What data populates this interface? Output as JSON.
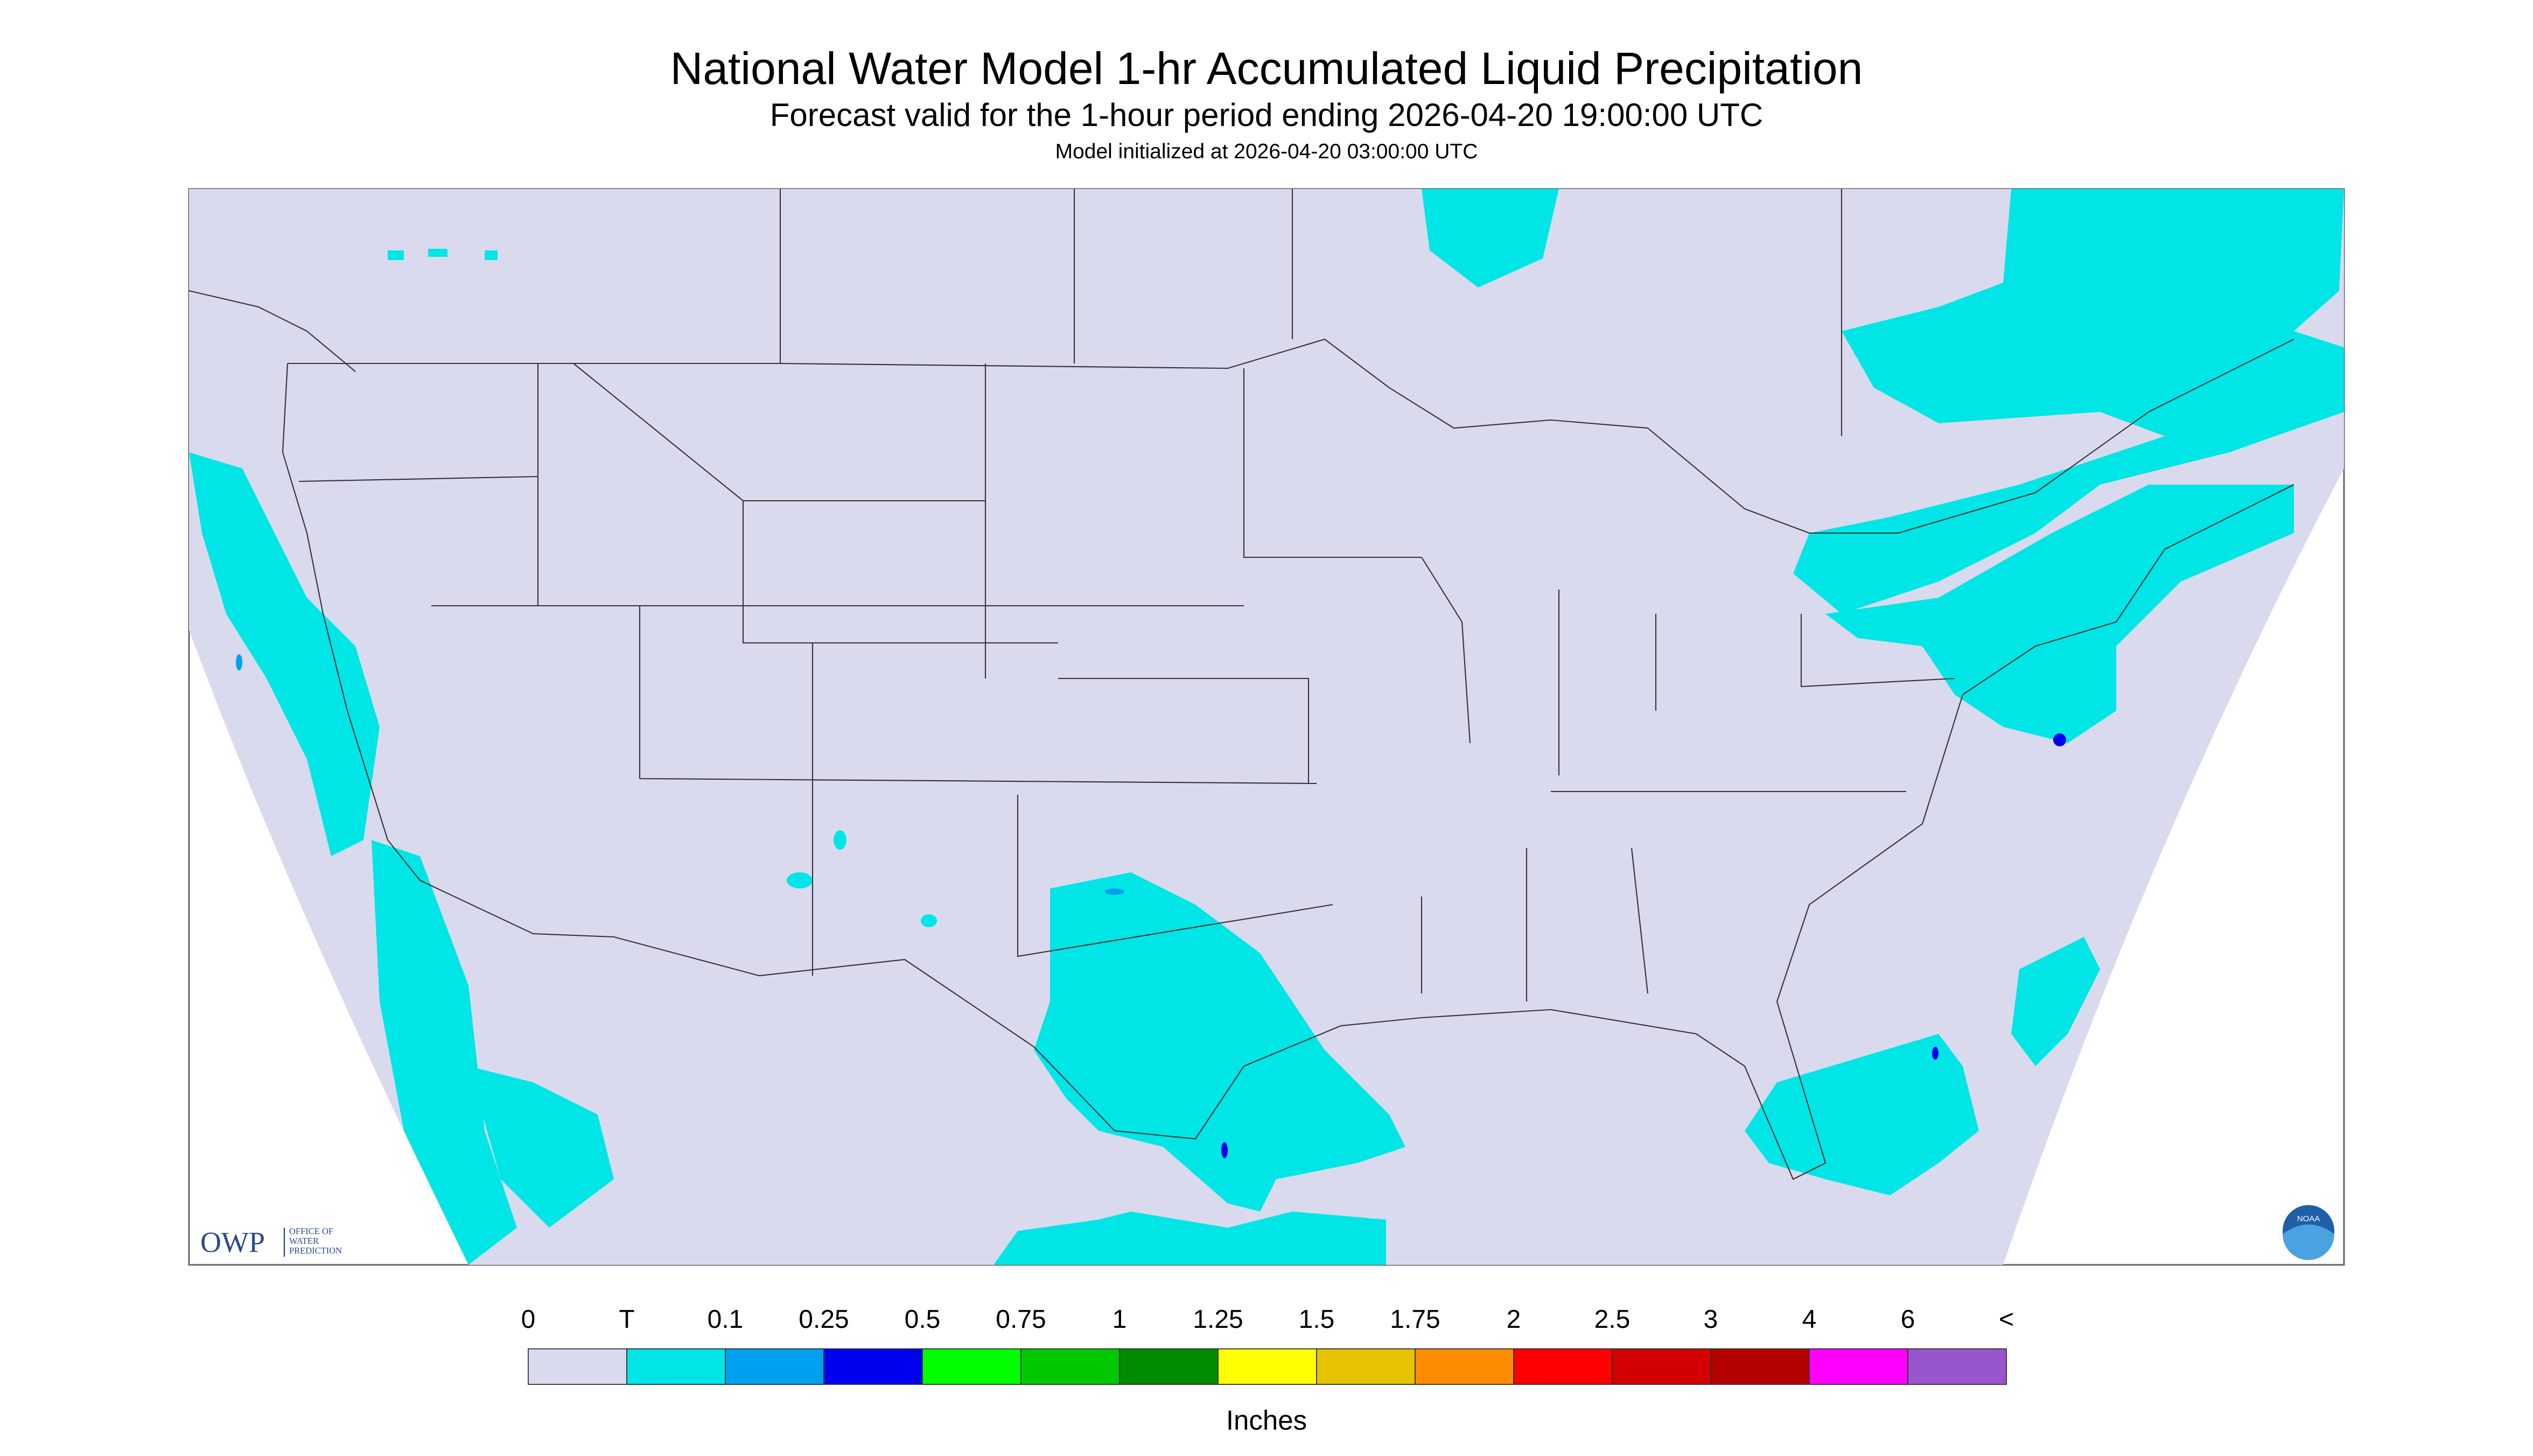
{
  "header": {
    "title": "National Water Model 1-hr Accumulated Liquid Precipitation",
    "subtitle": "Forecast valid for the 1-hour period ending 2026-04-20 19:00:00 UTC",
    "init": "Model initialized at 2026-04-20 03:00:00 UTC"
  },
  "logos": {
    "owp": "OWP",
    "owp_name": [
      "OFFICE OF",
      "WATER",
      "PREDICTION"
    ],
    "noaa": "NOAA"
  },
  "legend": {
    "labels": [
      "0",
      "T",
      "0.1",
      "0.25",
      "0.5",
      "0.75",
      "1",
      "1.25",
      "1.5",
      "1.75",
      "2",
      "2.5",
      "3",
      "4",
      "6",
      "<"
    ],
    "colors": [
      "#dadaee",
      "#00e6e6",
      "#00a0f0",
      "#0000f0",
      "#00ff00",
      "#00c800",
      "#008c00",
      "#ffff00",
      "#e6c200",
      "#ff8c00",
      "#ff0000",
      "#d20000",
      "#b40000",
      "#ff00ff",
      "#9955cc"
    ],
    "units": "Inches"
  }
}
